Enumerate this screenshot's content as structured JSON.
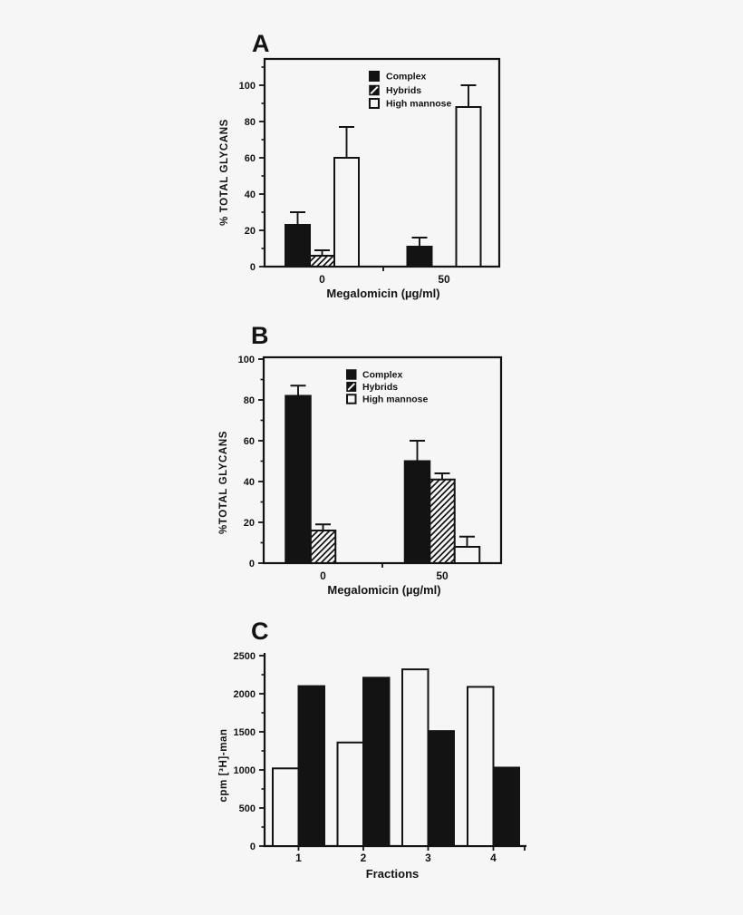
{
  "figure": {
    "background": "#f6f6f6",
    "ink": "#131313"
  },
  "chart_data": [
    {
      "id": "A",
      "panel_label": "A",
      "type": "bar",
      "title": "",
      "ylabel": "% TOTAL GLYCANS",
      "xlabel": "Megalomicin (µg/ml)",
      "categories": [
        "0",
        "50"
      ],
      "ylim": [
        0,
        100
      ],
      "yticks": [
        0,
        20,
        40,
        60,
        80,
        100
      ],
      "grid": false,
      "legend_position": "top-inside",
      "legend": [
        "Complex",
        "Hybrids",
        "High mannose"
      ],
      "series": [
        {
          "name": "Complex",
          "style": "solid",
          "values": [
            23,
            11
          ],
          "errors": [
            7,
            5
          ]
        },
        {
          "name": "Hybrids",
          "style": "hatch",
          "values": [
            6,
            null
          ],
          "errors": [
            3,
            null
          ]
        },
        {
          "name": "High mannose",
          "style": "open",
          "values": [
            60,
            88
          ],
          "errors": [
            17,
            12
          ]
        }
      ]
    },
    {
      "id": "B",
      "panel_label": "B",
      "type": "bar",
      "title": "",
      "ylabel": "%TOTAL GLYCANS",
      "xlabel": "Megalomicin (µg/ml)",
      "categories": [
        "0",
        "50"
      ],
      "ylim": [
        0,
        100
      ],
      "yticks": [
        0,
        20,
        40,
        60,
        80,
        100
      ],
      "grid": false,
      "legend_position": "top-inside",
      "legend": [
        "Complex",
        "Hybrids",
        "High mannose"
      ],
      "series": [
        {
          "name": "Complex",
          "style": "solid",
          "values": [
            82,
            50
          ],
          "errors": [
            5,
            10
          ]
        },
        {
          "name": "Hybrids",
          "style": "hatch",
          "values": [
            16,
            41
          ],
          "errors": [
            3,
            3
          ]
        },
        {
          "name": "High mannose",
          "style": "open",
          "values": [
            null,
            8
          ],
          "errors": [
            null,
            5
          ]
        }
      ]
    },
    {
      "id": "C",
      "panel_label": "C",
      "type": "bar",
      "title": "",
      "ylabel": "cpm [³H]-man",
      "xlabel": "Fractions",
      "categories": [
        "1",
        "2",
        "3",
        "4"
      ],
      "ylim": [
        0,
        2500
      ],
      "yticks": [
        0,
        500,
        1000,
        1500,
        2000,
        2500
      ],
      "grid": false,
      "legend": null,
      "series": [
        {
          "name": "open bar",
          "style": "open",
          "values": [
            1020,
            1360,
            2320,
            2090
          ]
        },
        {
          "name": "solid bar",
          "style": "solid",
          "values": [
            2100,
            2210,
            1510,
            1030
          ]
        }
      ]
    }
  ]
}
